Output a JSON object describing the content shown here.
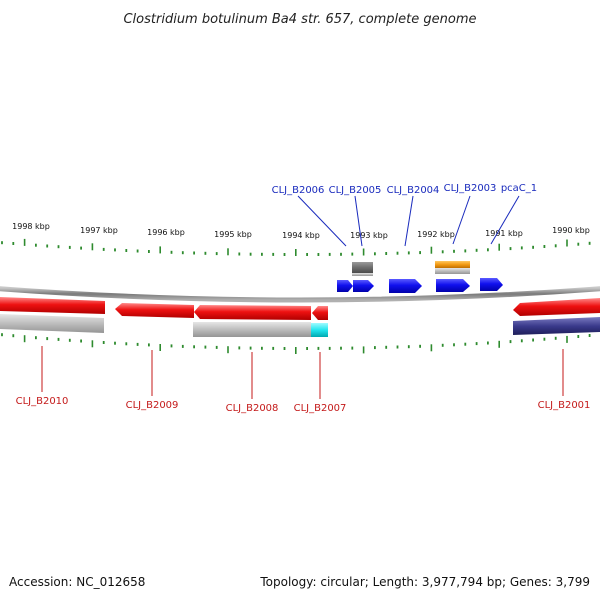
{
  "title": "Clostridium botulinum Ba4 str. 657, complete genome",
  "footer": {
    "accession": "Accession: NC_012658",
    "topology": "Topology: circular; Length: 3,977,794 bp; Genes: 3,799"
  },
  "tick_labels": [
    "1998 kbp",
    "1997 kbp",
    "1996 kbp",
    "1995 kbp",
    "1994 kbp",
    "1993 kbp",
    "1992 kbp",
    "1991 kbp",
    "1990 kbp"
  ],
  "gene_labels_top": [
    "CLJ_B2006",
    "CLJ_B2005",
    "CLJ_B2004",
    "CLJ_B2003",
    "pcaC_1"
  ],
  "gene_labels_bottom": [
    "CLJ_B2010",
    "CLJ_B2009",
    "CLJ_B2008",
    "CLJ_B2007",
    "CLJ_B2001"
  ],
  "colors": {
    "backbone": "#8a8a8a",
    "ticks": "#2e8b2e",
    "gene_red": "#ee1111",
    "gene_blue": "#1010ee",
    "gene_gray": "#6e6e6e",
    "gene_lightgray": "#bdbdbd",
    "gene_orange": "#f29a13",
    "gene_cyan": "#22e5ee",
    "gene_navy": "#3a3a8c",
    "label_top": "#1a2bbd",
    "label_bottom": "#c41a1a"
  }
}
